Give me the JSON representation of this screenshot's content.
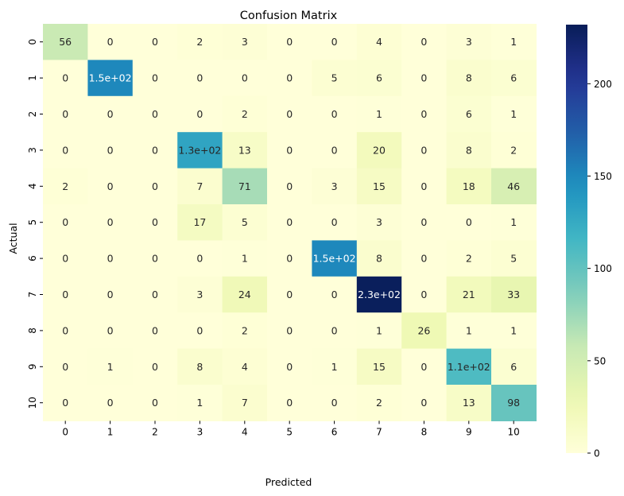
{
  "chart_data": {
    "type": "heatmap",
    "title": "Confusion Matrix",
    "xlabel": "Predicted",
    "ylabel": "Actual",
    "x_categories": [
      "0",
      "1",
      "2",
      "3",
      "4",
      "5",
      "6",
      "7",
      "8",
      "9",
      "10"
    ],
    "y_categories": [
      "0",
      "1",
      "2",
      "3",
      "4",
      "5",
      "6",
      "7",
      "8",
      "9",
      "10"
    ],
    "values": [
      [
        56,
        0,
        0,
        2,
        3,
        0,
        0,
        4,
        0,
        3,
        1
      ],
      [
        0,
        150,
        0,
        0,
        0,
        0,
        5,
        6,
        0,
        8,
        6
      ],
      [
        0,
        0,
        0,
        0,
        2,
        0,
        0,
        1,
        0,
        6,
        1
      ],
      [
        0,
        0,
        0,
        130,
        13,
        0,
        0,
        20,
        0,
        8,
        2
      ],
      [
        2,
        0,
        0,
        7,
        71,
        0,
        3,
        15,
        0,
        18,
        46
      ],
      [
        0,
        0,
        0,
        17,
        5,
        0,
        0,
        3,
        0,
        0,
        1
      ],
      [
        0,
        0,
        0,
        0,
        1,
        0,
        150,
        8,
        0,
        2,
        5
      ],
      [
        0,
        0,
        0,
        3,
        24,
        0,
        0,
        230,
        0,
        21,
        33
      ],
      [
        0,
        0,
        0,
        0,
        2,
        0,
        0,
        1,
        26,
        1,
        1
      ],
      [
        0,
        1,
        0,
        8,
        4,
        0,
        1,
        15,
        0,
        110,
        6
      ],
      [
        0,
        0,
        0,
        1,
        7,
        0,
        0,
        2,
        0,
        13,
        98
      ]
    ],
    "labels": [
      [
        "56",
        "0",
        "0",
        "2",
        "3",
        "0",
        "0",
        "4",
        "0",
        "3",
        "1"
      ],
      [
        "0",
        "1.5e+02",
        "0",
        "0",
        "0",
        "0",
        "5",
        "6",
        "0",
        "8",
        "6"
      ],
      [
        "0",
        "0",
        "0",
        "0",
        "2",
        "0",
        "0",
        "1",
        "0",
        "6",
        "1"
      ],
      [
        "0",
        "0",
        "0",
        "1.3e+02",
        "13",
        "0",
        "0",
        "20",
        "0",
        "8",
        "2"
      ],
      [
        "2",
        "0",
        "0",
        "7",
        "71",
        "0",
        "3",
        "15",
        "0",
        "18",
        "46"
      ],
      [
        "0",
        "0",
        "0",
        "17",
        "5",
        "0",
        "0",
        "3",
        "0",
        "0",
        "1"
      ],
      [
        "0",
        "0",
        "0",
        "0",
        "1",
        "0",
        "1.5e+02",
        "8",
        "0",
        "2",
        "5"
      ],
      [
        "0",
        "0",
        "0",
        "3",
        "24",
        "0",
        "0",
        "2.3e+02",
        "0",
        "21",
        "33"
      ],
      [
        "0",
        "0",
        "0",
        "0",
        "2",
        "0",
        "0",
        "1",
        "26",
        "1",
        "1"
      ],
      [
        "0",
        "1",
        "0",
        "8",
        "4",
        "0",
        "1",
        "15",
        "0",
        "1.1e+02",
        "6"
      ],
      [
        "0",
        "0",
        "0",
        "1",
        "7",
        "0",
        "0",
        "2",
        "0",
        "13",
        "98"
      ]
    ],
    "colormap": "YlGnBu",
    "vmin": 0,
    "vmax": 232,
    "colorbar_ticks": [
      0,
      50,
      100,
      150,
      200
    ],
    "grid": false
  }
}
